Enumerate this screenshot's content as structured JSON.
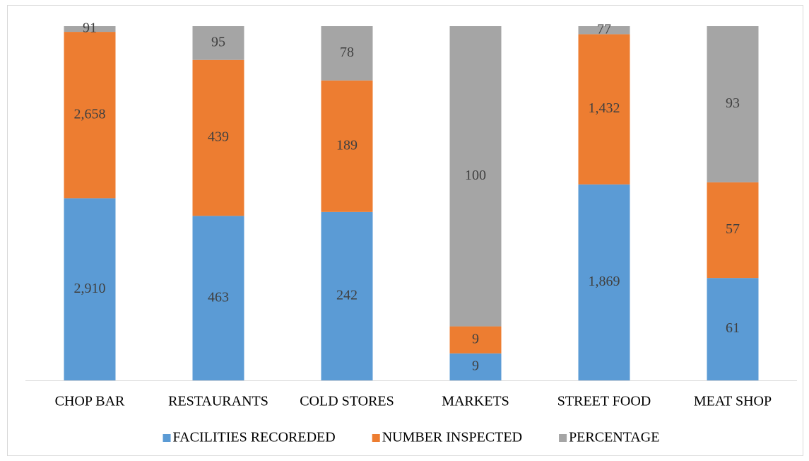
{
  "chart_data": {
    "type": "bar",
    "stack": "percent",
    "categories": [
      "CHOP BAR",
      "RESTAURANTS",
      "COLD STORES",
      "MARKETS",
      "STREET FOOD",
      "MEAT SHOP"
    ],
    "series": [
      {
        "name": "FACILITIES RECOREDED",
        "color": "#5b9bd5",
        "values": [
          2910,
          463,
          242,
          9,
          1869,
          61
        ],
        "value_labels": [
          "2,910",
          "463",
          "242",
          "9",
          "1,869",
          "61"
        ]
      },
      {
        "name": "NUMBER INSPECTED",
        "color": "#ed7d31",
        "values": [
          2658,
          439,
          189,
          9,
          1432,
          57
        ],
        "value_labels": [
          "2,658",
          "439",
          "189",
          "9",
          "1,432",
          "57"
        ]
      },
      {
        "name": "PERCENTAGE",
        "color": "#a5a5a5",
        "values": [
          91,
          95,
          78,
          100,
          77,
          93
        ]
      }
    ],
    "legend": "bottom"
  }
}
